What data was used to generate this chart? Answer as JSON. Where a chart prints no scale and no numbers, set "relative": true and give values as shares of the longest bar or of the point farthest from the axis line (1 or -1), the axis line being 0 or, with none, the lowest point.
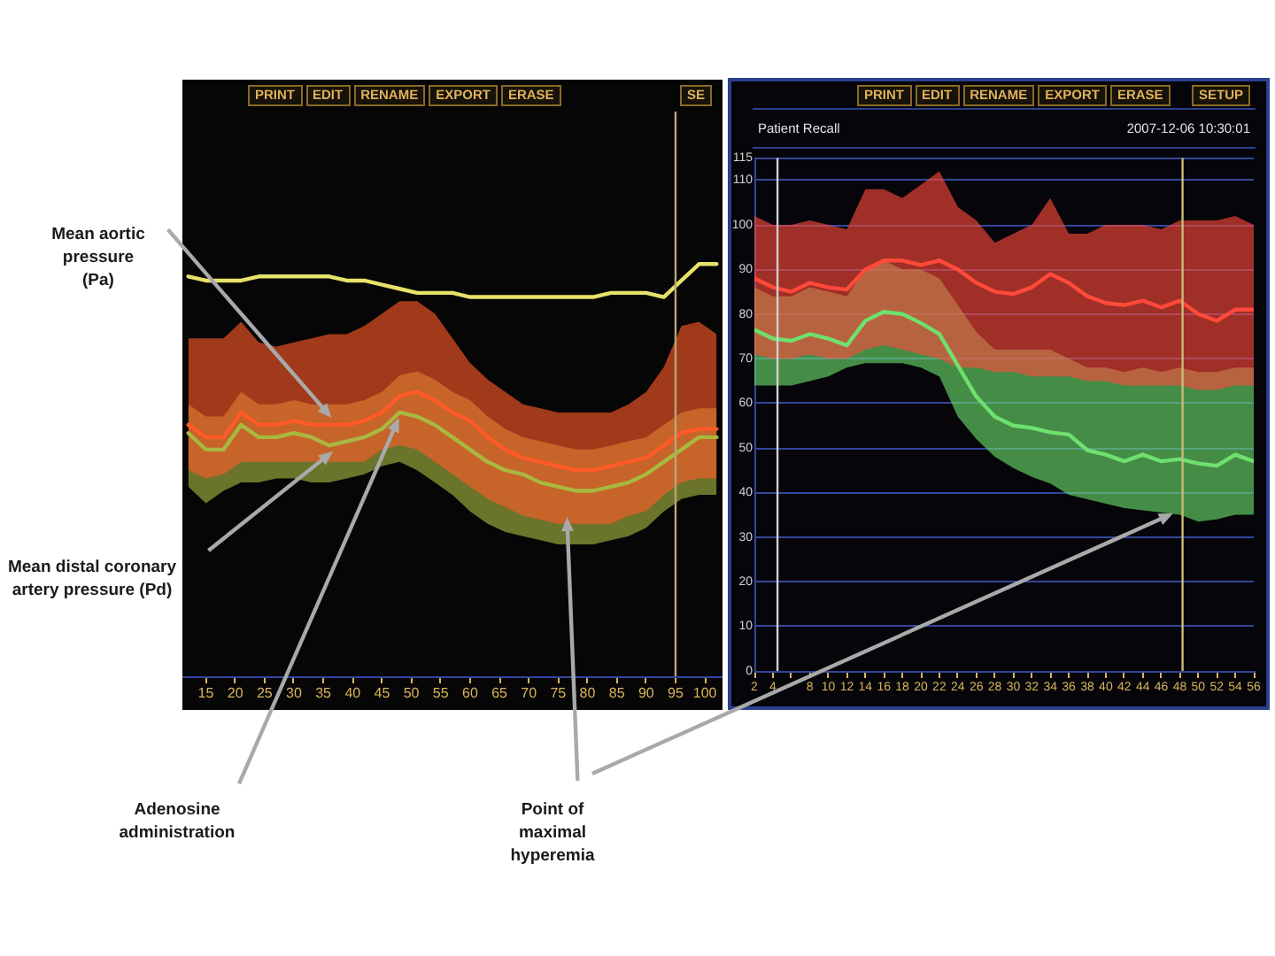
{
  "chart_data": [
    {
      "type": "line",
      "relative": true,
      "tick_labels": "x",
      "x": [
        12,
        15,
        18,
        21,
        24,
        27,
        30,
        33,
        36,
        39,
        42,
        45,
        48,
        51,
        54,
        57,
        60,
        63,
        66,
        69,
        72,
        75,
        78,
        81,
        84,
        87,
        90,
        93,
        96,
        99,
        102
      ],
      "xlim": [
        11,
        103
      ],
      "xticks": [
        15,
        20,
        25,
        30,
        35,
        40,
        45,
        50,
        55,
        60,
        65,
        70,
        75,
        80,
        85,
        90,
        95,
        100
      ],
      "series": [
        {
          "color": "#e6e26a",
          "values": [
            0.97,
            0.96,
            0.96,
            0.96,
            0.97,
            0.97,
            0.97,
            0.97,
            0.97,
            0.96,
            0.96,
            0.95,
            0.94,
            0.93,
            0.93,
            0.93,
            0.92,
            0.92,
            0.92,
            0.92,
            0.92,
            0.92,
            0.92,
            0.92,
            0.93,
            0.93,
            0.93,
            0.92,
            0.96,
            1.0,
            1.0
          ]
        },
        {
          "color": "#ff5a28",
          "values": [
            0.61,
            0.58,
            0.58,
            0.64,
            0.61,
            0.61,
            0.62,
            0.61,
            0.61,
            0.61,
            0.62,
            0.64,
            0.68,
            0.69,
            0.67,
            0.64,
            0.62,
            0.58,
            0.55,
            0.53,
            0.52,
            0.51,
            0.5,
            0.5,
            0.51,
            0.52,
            0.53,
            0.56,
            0.59,
            0.6,
            0.6
          ],
          "lower": [
            0.5,
            0.48,
            0.49,
            0.52,
            0.52,
            0.52,
            0.52,
            0.52,
            0.52,
            0.52,
            0.52,
            0.55,
            0.56,
            0.55,
            0.52,
            0.49,
            0.46,
            0.43,
            0.41,
            0.39,
            0.38,
            0.37,
            0.37,
            0.37,
            0.37,
            0.39,
            0.4,
            0.44,
            0.47,
            0.48,
            0.48
          ],
          "upper": [
            0.82,
            0.82,
            0.82,
            0.86,
            0.81,
            0.8,
            0.81,
            0.82,
            0.83,
            0.83,
            0.85,
            0.88,
            0.91,
            0.91,
            0.88,
            0.82,
            0.76,
            0.72,
            0.69,
            0.66,
            0.65,
            0.64,
            0.64,
            0.64,
            0.64,
            0.66,
            0.69,
            0.75,
            0.85,
            0.86,
            0.83
          ]
        },
        {
          "color": "#a8b840",
          "values": [
            0.59,
            0.55,
            0.55,
            0.61,
            0.58,
            0.58,
            0.59,
            0.58,
            0.56,
            0.57,
            0.58,
            0.6,
            0.64,
            0.63,
            0.61,
            0.58,
            0.55,
            0.52,
            0.5,
            0.49,
            0.47,
            0.46,
            0.45,
            0.45,
            0.46,
            0.47,
            0.49,
            0.52,
            0.55,
            0.58,
            0.58
          ],
          "lower": [
            0.46,
            0.42,
            0.45,
            0.47,
            0.47,
            0.48,
            0.48,
            0.47,
            0.47,
            0.48,
            0.49,
            0.51,
            0.52,
            0.5,
            0.47,
            0.44,
            0.4,
            0.37,
            0.35,
            0.34,
            0.33,
            0.32,
            0.32,
            0.32,
            0.33,
            0.34,
            0.36,
            0.4,
            0.43,
            0.44,
            0.44
          ],
          "upper": [
            0.66,
            0.63,
            0.63,
            0.69,
            0.66,
            0.66,
            0.67,
            0.66,
            0.66,
            0.66,
            0.67,
            0.69,
            0.73,
            0.74,
            0.72,
            0.69,
            0.67,
            0.63,
            0.6,
            0.58,
            0.57,
            0.56,
            0.55,
            0.55,
            0.56,
            0.57,
            0.58,
            0.61,
            0.64,
            0.65,
            0.65
          ]
        }
      ],
      "ref_lines": [
        {
          "axis": "x",
          "value": 95,
          "color": "#b4a878"
        }
      ],
      "annotations": [
        "PRINT",
        "EDIT",
        "RENAME",
        "EXPORT",
        "ERASE",
        "SE",
        "Mean aortic pressure (Pa)",
        "Mean distal coronary artery pressure (Pd)",
        "Adenosine administration",
        "Point of maximal hyperemia"
      ]
    },
    {
      "type": "line",
      "title": "Patient Recall",
      "subtitle": "2007-12-06 10:30:01",
      "grid": "y",
      "x": [
        2,
        4,
        6,
        8,
        10,
        12,
        14,
        16,
        18,
        20,
        22,
        24,
        26,
        28,
        30,
        32,
        34,
        36,
        38,
        40,
        42,
        44,
        46,
        48,
        50,
        52,
        54,
        56
      ],
      "xlim": [
        2,
        56
      ],
      "xticks": [
        2,
        4,
        {
          "value": 6,
          "label": null
        },
        8,
        10,
        12,
        14,
        16,
        18,
        20,
        22,
        24,
        26,
        28,
        30,
        32,
        34,
        36,
        38,
        40,
        42,
        44,
        46,
        48,
        50,
        52,
        54,
        56
      ],
      "ylim": [
        0,
        115
      ],
      "yticks": [
        0,
        10,
        20,
        30,
        40,
        50,
        60,
        70,
        80,
        90,
        100,
        110,
        115
      ],
      "series": [
        {
          "color": "#ff4a3a",
          "values": [
            88,
            86,
            85,
            87,
            86,
            85.5,
            90,
            92,
            92,
            91,
            92,
            90,
            87,
            85,
            84.5,
            86,
            89,
            87,
            84,
            82.5,
            82,
            83,
            81.5,
            83,
            80,
            78.5,
            81,
            81
          ],
          "lower": [
            71,
            70,
            70,
            71,
            70,
            70,
            72,
            73,
            72,
            71,
            70,
            68,
            68,
            67,
            67,
            66,
            66,
            66,
            65,
            65,
            64,
            64,
            64,
            64,
            63,
            63,
            64,
            64
          ],
          "upper": [
            102,
            100,
            100,
            101,
            100,
            99,
            108,
            108,
            106,
            109,
            112,
            104,
            101,
            96,
            98,
            100,
            106,
            98,
            98,
            100,
            100,
            100,
            99,
            101,
            101,
            101,
            102,
            100
          ]
        },
        {
          "color": "#6ee06e",
          "values": [
            76.5,
            74.5,
            74,
            75.5,
            74.5,
            73,
            78.5,
            80.5,
            80,
            78,
            75.5,
            68.5,
            61.5,
            57,
            55,
            54.5,
            53.5,
            53,
            49.5,
            48.5,
            47,
            48.5,
            47,
            47.5,
            46.5,
            46,
            48.5,
            47
          ],
          "lower": [
            64,
            64,
            64,
            65,
            66,
            68,
            69,
            69,
            69,
            68,
            66,
            57,
            52,
            48,
            45.5,
            43.5,
            42,
            39.5,
            38.5,
            37.5,
            36.5,
            36,
            35.5,
            35,
            33.5,
            34,
            35,
            35
          ],
          "upper": [
            86,
            84,
            84,
            86,
            85,
            84,
            90,
            92,
            90,
            90,
            88,
            82,
            76,
            72,
            72,
            72,
            72,
            70,
            68,
            68,
            67,
            68,
            67,
            68,
            67,
            67,
            68,
            68
          ]
        }
      ],
      "ref_lines": [
        {
          "axis": "x",
          "value": 4.5,
          "color": "#cfcfcf"
        },
        {
          "axis": "x",
          "value": 48.3,
          "color": "#c9bd7a"
        }
      ],
      "annotations": [
        "PRINT",
        "EDIT",
        "RENAME",
        "EXPORT",
        "ERASE",
        "SETUP"
      ]
    }
  ]
}
